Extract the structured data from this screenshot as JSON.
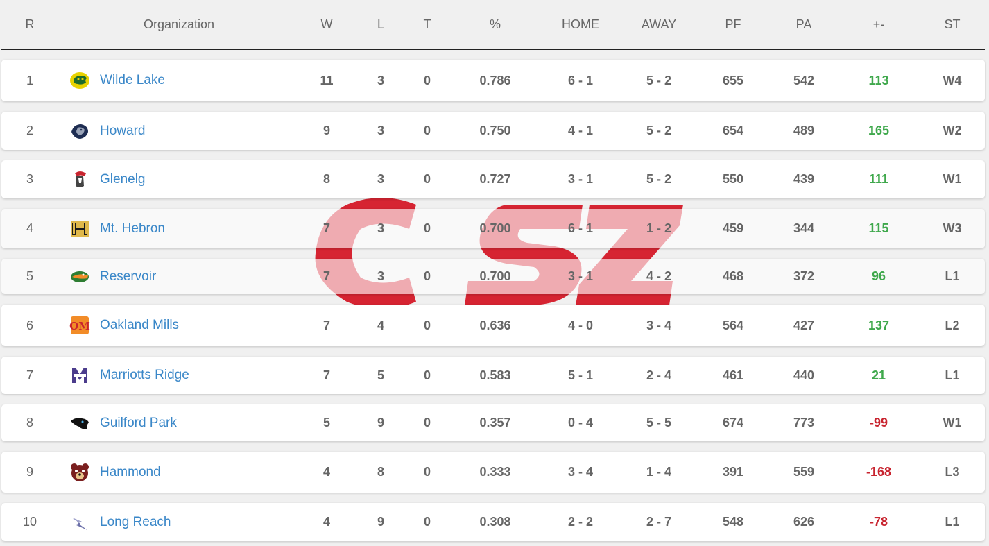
{
  "columns": {
    "rank": "R",
    "org": "Organization",
    "w": "W",
    "l": "L",
    "t": "T",
    "pct": "%",
    "home": "HOME",
    "away": "AWAY",
    "pf": "PF",
    "pa": "PA",
    "diff": "+-",
    "streak": "ST"
  },
  "colors": {
    "link": "#3a87c8",
    "positive": "#3fa84c",
    "negative": "#c8242f",
    "watermark": "#d62432"
  },
  "rows": [
    {
      "rank": "1",
      "org": "Wilde Lake",
      "logo": "wildecat-logo-icon",
      "w": "11",
      "l": "3",
      "t": "0",
      "pct": "0.786",
      "home": "6 - 1",
      "away": "5 - 2",
      "pf": "655",
      "pa": "542",
      "diff": "113",
      "streak": "W4"
    },
    {
      "rank": "2",
      "org": "Howard",
      "logo": "lion-logo-icon",
      "w": "9",
      "l": "3",
      "t": "0",
      "pct": "0.750",
      "home": "4 - 1",
      "away": "5 - 2",
      "pf": "654",
      "pa": "489",
      "diff": "165",
      "streak": "W2"
    },
    {
      "rank": "3",
      "org": "Glenelg",
      "logo": "gladiator-logo-icon",
      "w": "8",
      "l": "3",
      "t": "0",
      "pct": "0.727",
      "home": "3 - 1",
      "away": "5 - 2",
      "pf": "550",
      "pa": "439",
      "diff": "111",
      "streak": "W1"
    },
    {
      "rank": "4",
      "org": "Mt. Hebron",
      "logo": "mh-monogram-logo-icon",
      "w": "7",
      "l": "3",
      "t": "0",
      "pct": "0.700",
      "home": "6 - 1",
      "away": "1 - 2",
      "pf": "459",
      "pa": "344",
      "diff": "115",
      "streak": "W3"
    },
    {
      "rank": "5",
      "org": "Reservoir",
      "logo": "gator-logo-icon",
      "w": "7",
      "l": "3",
      "t": "0",
      "pct": "0.700",
      "home": "3 - 1",
      "away": "4 - 2",
      "pf": "468",
      "pa": "372",
      "diff": "96",
      "streak": "L1"
    },
    {
      "rank": "6",
      "org": "Oakland Mills",
      "logo": "om-monogram-logo-icon",
      "w": "7",
      "l": "4",
      "t": "0",
      "pct": "0.636",
      "home": "4 - 0",
      "away": "3 - 4",
      "pf": "564",
      "pa": "427",
      "diff": "137",
      "streak": "L2"
    },
    {
      "rank": "7",
      "org": "Marriotts Ridge",
      "logo": "mustang-ridge-logo-icon",
      "w": "7",
      "l": "5",
      "t": "0",
      "pct": "0.583",
      "home": "5 - 1",
      "away": "2 - 4",
      "pf": "461",
      "pa": "440",
      "diff": "21",
      "streak": "L1"
    },
    {
      "rank": "8",
      "org": "Guilford Park",
      "logo": "panther-logo-icon",
      "w": "5",
      "l": "9",
      "t": "0",
      "pct": "0.357",
      "home": "0 - 4",
      "away": "5 - 5",
      "pf": "674",
      "pa": "773",
      "diff": "-99",
      "streak": "W1"
    },
    {
      "rank": "9",
      "org": "Hammond",
      "logo": "bear-logo-icon",
      "w": "4",
      "l": "8",
      "t": "0",
      "pct": "0.333",
      "home": "3 - 4",
      "away": "1 - 4",
      "pf": "391",
      "pa": "559",
      "diff": "-168",
      "streak": "L3"
    },
    {
      "rank": "10",
      "org": "Long Reach",
      "logo": "lightning-logo-icon",
      "w": "4",
      "l": "9",
      "t": "0",
      "pct": "0.308",
      "home": "2 - 2",
      "away": "2 - 7",
      "pf": "548",
      "pa": "626",
      "diff": "-78",
      "streak": "L1"
    }
  ]
}
